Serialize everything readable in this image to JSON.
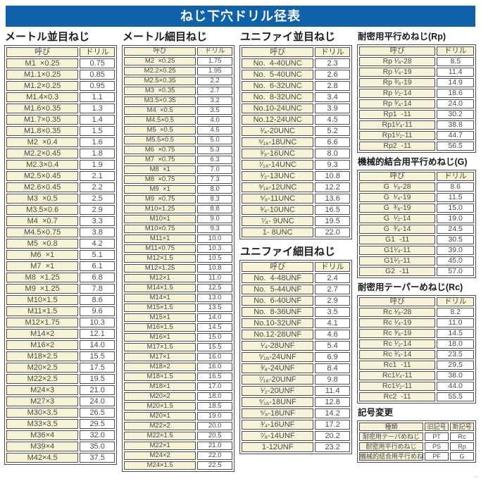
{
  "title": "ねじ下穴ドリル径表",
  "corner_mark": "--",
  "sections": {
    "metric_coarse": {
      "title": "メートル並目ねじ",
      "headers": [
        "呼び",
        "ドリル"
      ],
      "rows": [
        [
          "M1  ×0.25",
          "0.75"
        ],
        [
          "M1.1×0.25",
          "0.85"
        ],
        [
          "M1.2×0.25",
          "0.95"
        ],
        [
          "M1.4×0.3",
          "1.1"
        ],
        [
          "M1.6×0.35",
          "1.3"
        ],
        [
          "M1.7×0.35",
          "1.4"
        ],
        [
          "M1.8×0.35",
          "1.5"
        ],
        [
          "M2  ×0.4",
          "1.6"
        ],
        [
          "M2.2×0.45",
          "1.8"
        ],
        [
          "M2.3×0.4",
          "1.9"
        ],
        [
          "M2.5×0.45",
          "2.1"
        ],
        [
          "M2.6×0.45",
          "2.2"
        ],
        [
          "M3  ×0.5",
          "2.5"
        ],
        [
          "M3.5×0.6",
          "2.9"
        ],
        [
          "M4  ×0.7",
          "3.3"
        ],
        [
          "M4.5×0.75",
          "3.8"
        ],
        [
          "M5  ×0.8",
          "4.2"
        ],
        [
          "M6  ×1",
          "5.1"
        ],
        [
          "M7  ×1",
          "6.1"
        ],
        [
          "M8  ×1.25",
          "6.8"
        ],
        [
          "M9  ×1.25",
          "7.8"
        ],
        [
          "M10×1.5",
          "8.6"
        ],
        [
          "M11×1.5",
          "9.6"
        ],
        [
          "M12×1.75",
          "10.3"
        ],
        [
          "M14×2",
          "12.1"
        ],
        [
          "M16×2",
          "14.0"
        ],
        [
          "M18×2.5",
          "15.5"
        ],
        [
          "M20×2.5",
          "17.5"
        ],
        [
          "M22×2.5",
          "19.5"
        ],
        [
          "M24×3",
          "21.0"
        ],
        [
          "M27×3",
          "24.0"
        ],
        [
          "M30×3.5",
          "26.5"
        ],
        [
          "M33×3.5",
          "29.5"
        ],
        [
          "M36×4",
          "32.0"
        ],
        [
          "M39×4",
          "35.0"
        ],
        [
          "M42×4.5",
          "37.5"
        ]
      ]
    },
    "metric_fine": {
      "title": "メートル細目ねじ",
      "headers": [
        "呼び",
        "ドリル"
      ],
      "rows": [
        [
          "M2  ×0.25",
          "1.75"
        ],
        [
          "M2.2×0.25",
          "1.95"
        ],
        [
          "M2.5×0.35",
          "2.2"
        ],
        [
          "M3  ×0.35",
          "2.7"
        ],
        [
          "M3.5×0.35",
          "3.2"
        ],
        [
          "M4  ×0.5",
          "3.5"
        ],
        [
          "M4.5×0.5",
          "4.0"
        ],
        [
          "M5  ×0.5",
          "4.5"
        ],
        [
          "M5.5×0.5",
          "5.0"
        ],
        [
          "M6  ×0.75",
          "5.3"
        ],
        [
          "M7  ×0.75",
          "6.3"
        ],
        [
          "M8  ×1",
          "7.0"
        ],
        [
          "M8  ×0.75",
          "7.3"
        ],
        [
          "M9  ×1",
          "8.0"
        ],
        [
          "M9  ×0.75",
          "8.3"
        ],
        [
          "M10×1.25",
          "8.8"
        ],
        [
          "M10×1",
          "9.0"
        ],
        [
          "M10×0.75",
          "9.3"
        ],
        [
          "M11×1",
          "10.0"
        ],
        [
          "M11×0.75",
          "10.3"
        ],
        [
          "M12×1.5",
          "10.5"
        ],
        [
          "M12×1.25",
          "10.8"
        ],
        [
          "M12×1",
          "11.0"
        ],
        [
          "M14×1.5",
          "12.5"
        ],
        [
          "M14×1",
          "13.0"
        ],
        [
          "M15×1.5",
          "13.5"
        ],
        [
          "M15×1",
          "14.0"
        ],
        [
          "M16×1.5",
          "14.5"
        ],
        [
          "M16×1",
          "15.0"
        ],
        [
          "M17×1.5",
          "15.5"
        ],
        [
          "M17×1",
          "16.0"
        ],
        [
          "M18×2",
          "16.0"
        ],
        [
          "M18×1.5",
          "16.5"
        ],
        [
          "M18×1",
          "17.0"
        ],
        [
          "M20×2",
          "18.0"
        ],
        [
          "M20×1.5",
          "18.5"
        ],
        [
          "M20×1",
          "19.0"
        ],
        [
          "M22×2",
          "20.0"
        ],
        [
          "M22×1.5",
          "20.5"
        ],
        [
          "M22×1",
          "21.0"
        ],
        [
          "M24×2",
          "22.0"
        ],
        [
          "M24×1.5",
          "22.5"
        ]
      ]
    },
    "unified_coarse": {
      "title": "ユニファイ並目ねじ",
      "headers": [
        "呼び",
        "ドリル"
      ],
      "rows": [
        [
          "No.  4-40UNC",
          "2.3"
        ],
        [
          "No.  5-40UNC",
          "2.6"
        ],
        [
          "No.  6-32UNC",
          "2.8"
        ],
        [
          "No.  8-32UNC",
          "3.4"
        ],
        [
          "No.10-24UNC",
          "3.9"
        ],
        [
          "No.12-24UNC",
          "4.5"
        ],
        [
          "¹⁄₄-20UNC",
          "5.2"
        ],
        [
          "⁵⁄₁₆-18UNC",
          "6.6"
        ],
        [
          "³⁄₈-16UNC",
          "8.0"
        ],
        [
          "⁷⁄₁₆-14UNC",
          "9.3"
        ],
        [
          "¹⁄₂-13UNC",
          "10.8"
        ],
        [
          "⁹⁄₁₆-12UNC",
          "12.2"
        ],
        [
          "⁵⁄₈-11UNC",
          "13.6"
        ],
        [
          "³⁄₄-10UNC",
          "16.5"
        ],
        [
          "⁷⁄₈- 9UNC",
          "19.5"
        ],
        [
          "1- 8UNC",
          "22.0"
        ]
      ]
    },
    "unified_fine": {
      "title": "ユニファイ細目ねじ",
      "headers": [
        "呼び",
        "ドリル"
      ],
      "rows": [
        [
          "No.  4-48UNF",
          "2.4"
        ],
        [
          "No.  5-44UNF",
          "2.7"
        ],
        [
          "No.  6-40UNF",
          "2.9"
        ],
        [
          "No.  8-36UNF",
          "3.5"
        ],
        [
          "No.10-32UNF",
          "4.1"
        ],
        [
          "No.12-28UNF",
          "4.6"
        ],
        [
          "¹⁄₄-28UNF",
          "5.4"
        ],
        [
          "⁵⁄₁₆-24UNF",
          "6.9"
        ],
        [
          "³⁄₈-24UNF",
          "8.4"
        ],
        [
          "⁷⁄₁₆-20UNF",
          "9.8"
        ],
        [
          "¹⁄₂-20UNF",
          "11.4"
        ],
        [
          "⁹⁄₁₆-18UNF",
          "12.8"
        ],
        [
          "⁵⁄₈-18UNF",
          "14.2"
        ],
        [
          "³⁄₄-16UNF",
          "17.2"
        ],
        [
          "⁷⁄₈-14UNF",
          "20.2"
        ],
        [
          "1-12UNF",
          "23.2"
        ]
      ]
    },
    "rp": {
      "title": "耐密用平行めねじ(Rp)",
      "headers": [
        "呼び",
        "ドリル"
      ],
      "rows": [
        [
          "Rp ¹⁄₈-28",
          "8.5"
        ],
        [
          "Rp ¹⁄₄-19",
          "11.4"
        ],
        [
          "Rp ³⁄₈-19",
          "14.9"
        ],
        [
          "Rp ¹⁄₂-14",
          "18.6"
        ],
        [
          "Rp ³⁄₄-14",
          "24.0"
        ],
        [
          "Rp1  -11",
          "30.2"
        ],
        [
          "Rp1¹⁄₄-11",
          "38.8"
        ],
        [
          "Rp1¹⁄₂-11",
          "44.7"
        ],
        [
          "Rp2  -11",
          "56.5"
        ]
      ]
    },
    "g": {
      "title": "機械的結合用平行めねじ(G)",
      "headers": [
        "呼び",
        "ドリル"
      ],
      "rows": [
        [
          "G  ¹⁄₈-28",
          "8.6"
        ],
        [
          "G  ¹⁄₄-19",
          "11.5"
        ],
        [
          "G  ³⁄₈-19",
          "15.0"
        ],
        [
          "G  ¹⁄₂-14",
          "19.0"
        ],
        [
          "G  ³⁄₄-14",
          "24.5"
        ],
        [
          "G1  -11",
          "30.5"
        ],
        [
          "G1¹⁄₄-11",
          "39.0"
        ],
        [
          "G1¹⁄₂-11",
          "45.0"
        ],
        [
          "G2  -11",
          "57.0"
        ]
      ]
    },
    "rc": {
      "title": "耐密用テーパーめねじ(Rc)",
      "headers": [
        "呼び",
        "ドリル"
      ],
      "rows": [
        [
          "Rc ¹⁄₈-28",
          "8.2"
        ],
        [
          "Rc ¹⁄₄-19",
          "11.0"
        ],
        [
          "Rc ³⁄₈-19",
          "14.5"
        ],
        [
          "Rc ¹⁄₂-14",
          "18.0"
        ],
        [
          "Rc ³⁄₄-14",
          "23.5"
        ],
        [
          "Rc1  -11",
          "29.5"
        ],
        [
          "Rc1¹⁄₄-11",
          "38.0"
        ],
        [
          "Rc1¹⁄₂-11",
          "44.0"
        ],
        [
          "Rc2  -11",
          "55.5"
        ]
      ]
    },
    "symbol_change": {
      "title": "記号変更",
      "headers": [
        "種類",
        "旧記号",
        "新記号"
      ],
      "rows": [
        [
          "耐密用テーパめねじ",
          "PT",
          "Rc"
        ],
        [
          "耐密用平行めねじ",
          "PS",
          "Rp"
        ],
        [
          "機械的結合用平行めねじ",
          "PF",
          "G"
        ]
      ]
    }
  },
  "colors": {
    "banner_blue": "#1160aa",
    "cell_cream": "#f8f3d6",
    "border_gray": "#4d4d4d",
    "text_gray": "#4a4a4a"
  }
}
